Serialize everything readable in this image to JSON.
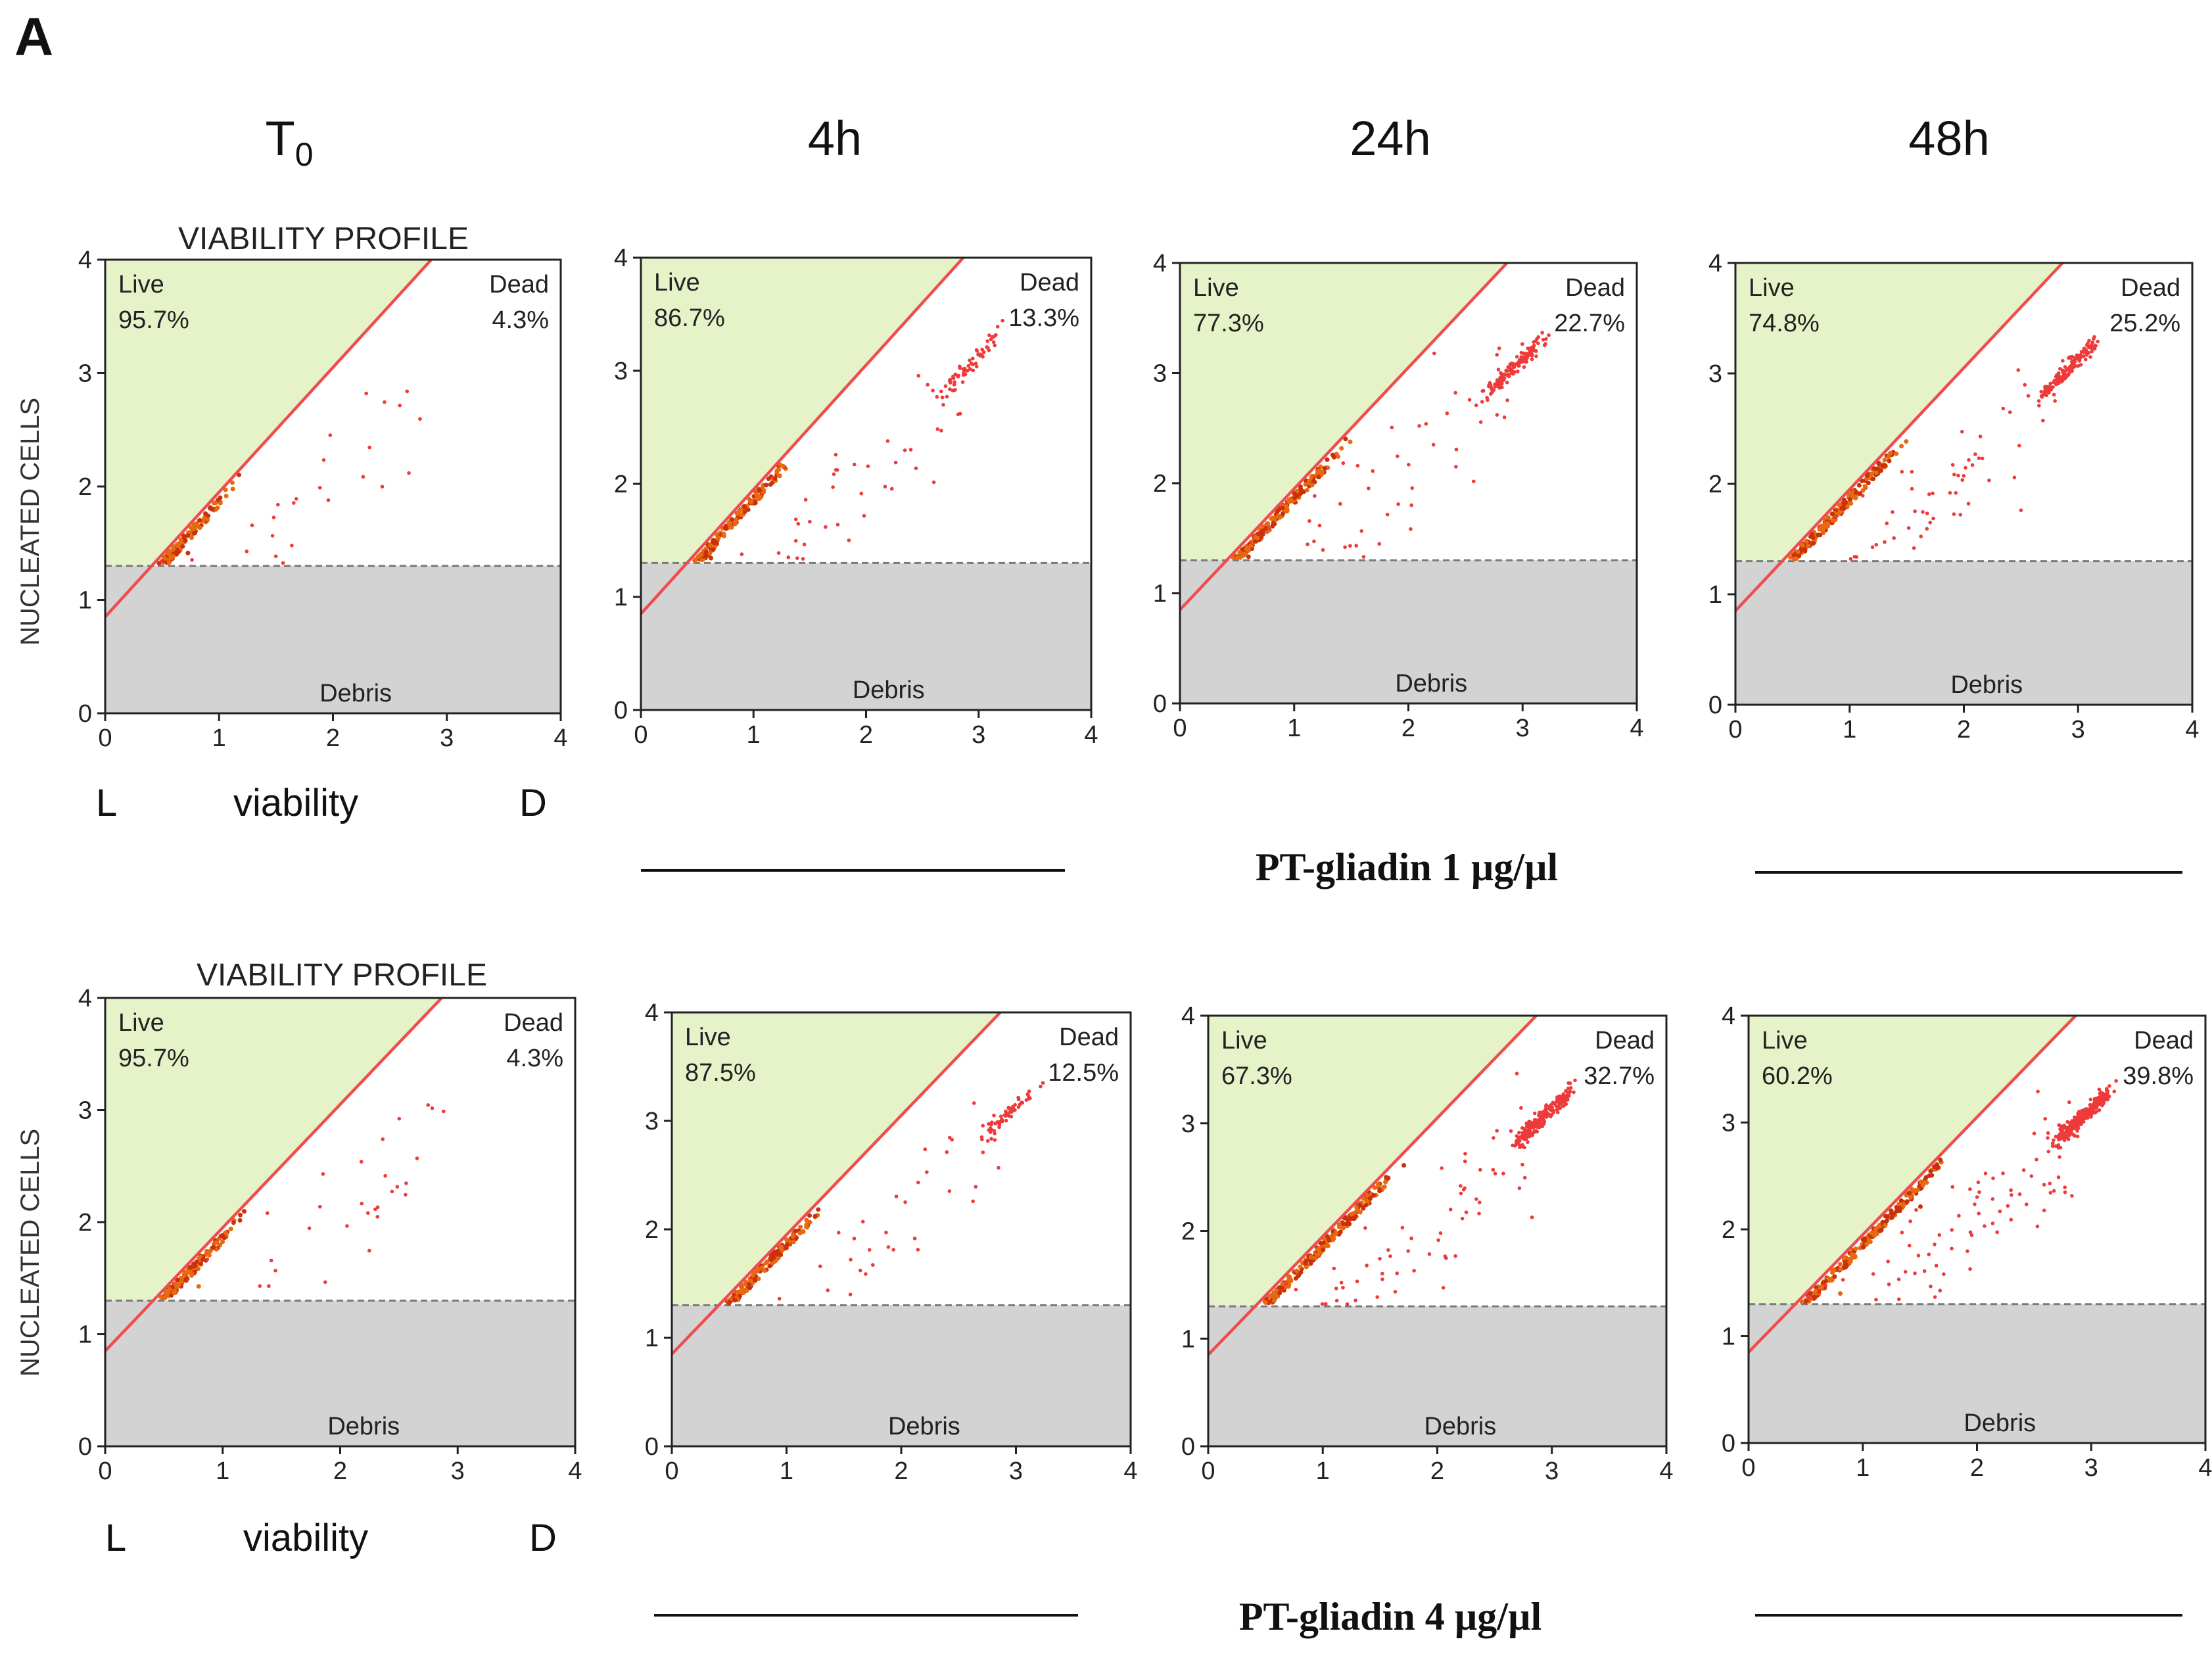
{
  "figure": {
    "panel_letter": "A",
    "time_labels": [
      {
        "main": "T",
        "sub": "0"
      },
      {
        "main": "4h",
        "sub": ""
      },
      {
        "main": "24h",
        "sub": ""
      },
      {
        "main": "48h",
        "sub": ""
      }
    ],
    "viability_profile_title": "VIABILITY PROFILE",
    "y_axis_title": "NUCLEATED CELLS",
    "x_axis_left": "L",
    "x_axis_center": "viability",
    "x_axis_right": "D",
    "treatments": [
      "PT-gliadin  1 µg/µl",
      "PT-gliadin  4 µg/µl"
    ]
  },
  "chart_data": [
    {
      "type": "scatter",
      "row": 0,
      "col": 0,
      "title": "VIABILITY PROFILE",
      "time": "T0",
      "treatment": "",
      "xlabel": "viability",
      "ylabel": "NUCLEATED CELLS",
      "xlim": [
        0,
        4
      ],
      "ylim": [
        0,
        4
      ],
      "ticks": [
        "0",
        "1",
        "2",
        "3",
        "4"
      ],
      "live_label": "Live",
      "live_pct": "95.7%",
      "dead_label": "Dead",
      "dead_pct": "4.3%",
      "debris_label": "Debris",
      "debris_threshold": 1.3,
      "gate_line": {
        "intercept": 0.85,
        "slope": 1.1
      }
    },
    {
      "type": "scatter",
      "row": 0,
      "col": 1,
      "title": "",
      "time": "4h",
      "treatment": "PT-gliadin 1 µg/µl",
      "xlabel": "viability",
      "ylabel": "NUCLEATED CELLS",
      "xlim": [
        0,
        4
      ],
      "ylim": [
        0,
        4
      ],
      "ticks": [
        "0",
        "1",
        "2",
        "3",
        "4"
      ],
      "live_label": "Live",
      "live_pct": "86.7%",
      "dead_label": "Dead",
      "dead_pct": "13.3%",
      "debris_label": "Debris",
      "debris_threshold": 1.3,
      "gate_line": {
        "intercept": 0.85,
        "slope": 1.1
      }
    },
    {
      "type": "scatter",
      "row": 0,
      "col": 2,
      "title": "",
      "time": "24h",
      "treatment": "PT-gliadin 1 µg/µl",
      "xlabel": "viability",
      "ylabel": "NUCLEATED CELLS",
      "xlim": [
        0,
        4
      ],
      "ylim": [
        0,
        4
      ],
      "ticks": [
        "0",
        "1",
        "2",
        "3",
        "4"
      ],
      "live_label": "Live",
      "live_pct": "77.3%",
      "dead_label": "Dead",
      "dead_pct": "22.7%",
      "debris_label": "Debris",
      "debris_threshold": 1.3,
      "gate_line": {
        "intercept": 0.85,
        "slope": 1.1
      }
    },
    {
      "type": "scatter",
      "row": 0,
      "col": 3,
      "title": "",
      "time": "48h",
      "treatment": "PT-gliadin 1 µg/µl",
      "xlabel": "viability",
      "ylabel": "NUCLEATED CELLS",
      "xlim": [
        0,
        4
      ],
      "ylim": [
        0,
        4
      ],
      "ticks": [
        "0",
        "1",
        "2",
        "3",
        "4"
      ],
      "live_label": "Live",
      "live_pct": "74.8%",
      "dead_label": "Dead",
      "dead_pct": "25.2%",
      "debris_label": "Debris",
      "debris_threshold": 1.3,
      "gate_line": {
        "intercept": 0.85,
        "slope": 1.1
      }
    },
    {
      "type": "scatter",
      "row": 1,
      "col": 0,
      "title": "VIABILITY PROFILE",
      "time": "T0",
      "treatment": "",
      "xlabel": "viability",
      "ylabel": "NUCLEATED CELLS",
      "xlim": [
        0,
        4
      ],
      "ylim": [
        0,
        4
      ],
      "ticks": [
        "0",
        "1",
        "2",
        "3",
        "4"
      ],
      "live_label": "Live",
      "live_pct": "95.7%",
      "dead_label": "Dead",
      "dead_pct": "4.3%",
      "debris_label": "Debris",
      "debris_threshold": 1.3,
      "gate_line": {
        "intercept": 0.85,
        "slope": 1.1
      }
    },
    {
      "type": "scatter",
      "row": 1,
      "col": 1,
      "title": "",
      "time": "4h",
      "treatment": "PT-gliadin 4 µg/µl",
      "xlabel": "viability",
      "ylabel": "NUCLEATED CELLS",
      "xlim": [
        0,
        4
      ],
      "ylim": [
        0,
        4
      ],
      "ticks": [
        "0",
        "1",
        "2",
        "3",
        "4"
      ],
      "live_label": "Live",
      "live_pct": "87.5%",
      "dead_label": "Dead",
      "dead_pct": "12.5%",
      "debris_label": "Debris",
      "debris_threshold": 1.3,
      "gate_line": {
        "intercept": 0.85,
        "slope": 1.1
      }
    },
    {
      "type": "scatter",
      "row": 1,
      "col": 2,
      "title": "",
      "time": "24h",
      "treatment": "PT-gliadin 4 µg/µl",
      "xlabel": "viability",
      "ylabel": "NUCLEATED CELLS",
      "xlim": [
        0,
        4
      ],
      "ylim": [
        0,
        4
      ],
      "ticks": [
        "0",
        "1",
        "2",
        "3",
        "4"
      ],
      "live_label": "Live",
      "live_pct": "67.3%",
      "dead_label": "Dead",
      "dead_pct": "32.7%",
      "debris_label": "Debris",
      "debris_threshold": 1.3,
      "gate_line": {
        "intercept": 0.85,
        "slope": 1.1
      }
    },
    {
      "type": "scatter",
      "row": 1,
      "col": 3,
      "title": "",
      "time": "48h",
      "treatment": "PT-gliadin 4 µg/µl",
      "xlabel": "viability",
      "ylabel": "NUCLEATED CELLS",
      "xlim": [
        0,
        4
      ],
      "ylim": [
        0,
        4
      ],
      "ticks": [
        "0",
        "1",
        "2",
        "3",
        "4"
      ],
      "live_label": "Live",
      "live_pct": "60.2%",
      "dead_label": "Dead",
      "dead_pct": "39.8%",
      "debris_label": "Debris",
      "debris_threshold": 1.3,
      "gate_line": {
        "intercept": 0.85,
        "slope": 1.1
      }
    }
  ]
}
